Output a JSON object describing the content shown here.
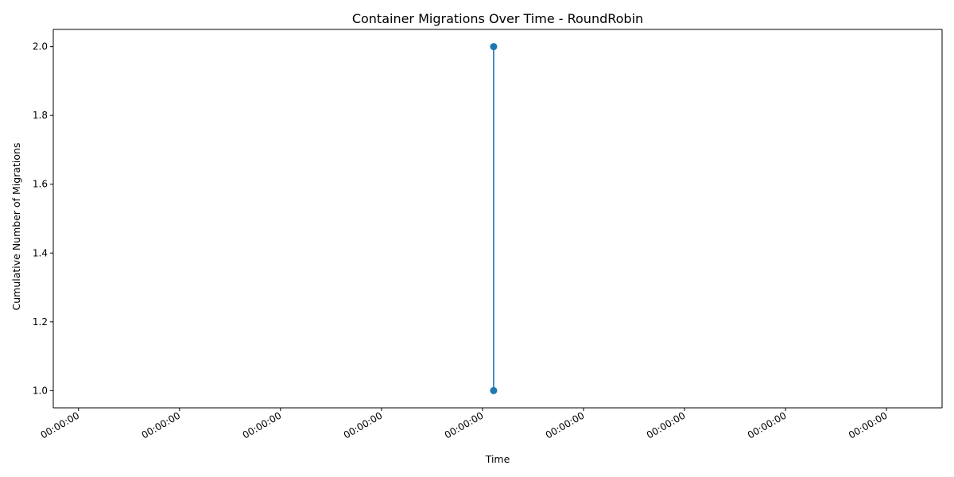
{
  "chart_data": {
    "type": "line",
    "title": "Container Migrations Over Time - RoundRobin",
    "xlabel": "Time",
    "ylabel": "Cumulative Number of Migrations",
    "x_tick_labels": [
      "00:00:00",
      "00:00:00",
      "00:00:00",
      "00:00:00",
      "00:00:00",
      "00:00:00",
      "00:00:00",
      "00:00:00",
      "00:00:00"
    ],
    "y_ticks": [
      "1.0",
      "1.2",
      "1.4",
      "1.6",
      "1.8",
      "2.0"
    ],
    "ylim": [
      0.95,
      2.05
    ],
    "grid": false,
    "series": [
      {
        "color": "#1f77b4",
        "points": [
          {
            "x": 4.11,
            "y": 1.0
          },
          {
            "x": 4.11,
            "y": 2.0
          }
        ]
      }
    ],
    "x_range": [
      -0.25,
      8.55
    ]
  }
}
